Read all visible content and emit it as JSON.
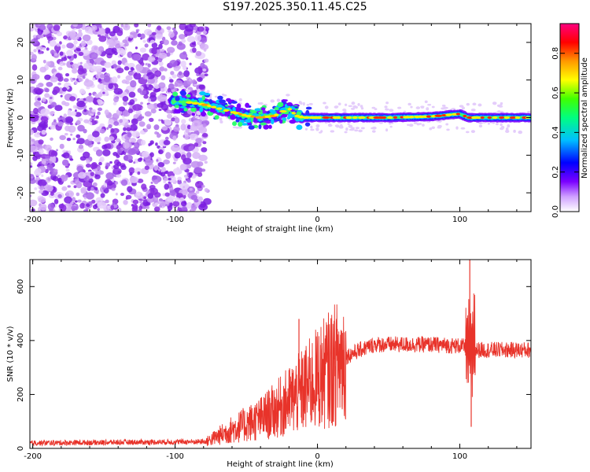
{
  "title": "S197.2025.350.11.45.C25",
  "colors": {
    "snr_line": "#e8332a",
    "scatter_purple": "#8a2be2",
    "axis": "#000000"
  },
  "chart_data": [
    {
      "type": "heatmap",
      "name": "spectrogram",
      "xlabel": "Height of straight line (km)",
      "ylabel": "Frequency (Hz)",
      "xlim": [
        -202,
        150
      ],
      "ylim": [
        -25,
        25
      ],
      "xticks": [
        -200,
        -100,
        0,
        100
      ],
      "yticks": [
        -20,
        -10,
        0,
        10,
        20
      ],
      "noise_region_x": [
        -202,
        -78
      ],
      "signal_track": {
        "x": [
          -100,
          -90,
          -80,
          -70,
          -60,
          -50,
          -40,
          -30,
          -20,
          -15,
          -10,
          0,
          20,
          50,
          80,
          100,
          106,
          110,
          130,
          150
        ],
        "y": [
          4.5,
          4,
          3.5,
          2.5,
          1.5,
          0.5,
          0,
          0.5,
          2.5,
          0.5,
          0,
          0,
          0,
          0,
          0.3,
          1,
          0,
          0,
          0,
          0
        ]
      },
      "colorbar": {
        "label": "Normalized spectral amplitude",
        "range": [
          0.0,
          0.95
        ],
        "ticks": [
          0.0,
          0.2,
          0.4,
          0.6,
          0.8
        ],
        "tick_labels": [
          "0.0",
          "0.2",
          "0.4",
          "0.6",
          "0.8"
        ]
      }
    },
    {
      "type": "line",
      "name": "snr",
      "xlabel": "Height of straight line (km)",
      "ylabel": "SNR (10 * v/v)",
      "xlim": [
        -202,
        150
      ],
      "ylim": [
        0,
        700
      ],
      "xticks": [
        -200,
        -100,
        0,
        100
      ],
      "yticks": [
        0,
        200,
        400,
        600
      ],
      "envelope": {
        "x": [
          -202,
          -78,
          -70,
          -60,
          -50,
          -40,
          -30,
          -20,
          -10,
          0,
          10,
          20,
          30,
          40,
          60,
          80,
          100,
          105,
          110,
          120,
          150
        ],
        "y": [
          20,
          25,
          45,
          70,
          90,
          110,
          140,
          175,
          215,
          260,
          300,
          340,
          365,
          385,
          385,
          385,
          380,
          375,
          365,
          365,
          365
        ]
      },
      "spikes": [
        {
          "x": -13,
          "y": 480
        },
        {
          "x": 107,
          "y": 700
        },
        {
          "x": 108,
          "y": 80
        }
      ]
    }
  ]
}
